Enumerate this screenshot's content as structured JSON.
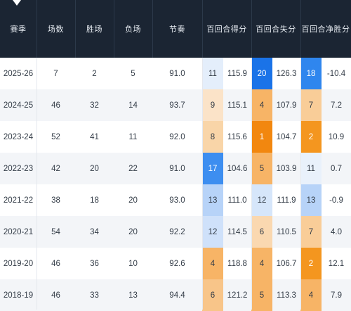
{
  "headers": {
    "season": "赛季",
    "games": "场数",
    "wins": "胜场",
    "losses": "负场",
    "pace": "节奏",
    "offrtg": "百回合得分",
    "defrtg": "百回合失分",
    "netrtg": "百回合净胜分"
  },
  "colors": {
    "header_bg": "#1b2533",
    "rank_scale": [
      "#1a73e8",
      "#3d8ef0",
      "#6aaaf4",
      "#9cc7f8",
      "#c6ddfa",
      "#e4eefb",
      "#fbe3c8",
      "#f9cd98",
      "#f7b466",
      "#f59c3a",
      "#f2870f"
    ]
  },
  "rows": [
    {
      "season": "2025-26",
      "games": "7",
      "wins": "2",
      "losses": "5",
      "pace": "91.0",
      "off_rank": "11",
      "off_val": "115.9",
      "def_rank": "20",
      "def_val": "126.3",
      "net_rank": "18",
      "net_val": "-10.4",
      "off_color": "#e4eefb",
      "def_color": "#1a73e8",
      "net_color": "#2f86ee"
    },
    {
      "season": "2024-25",
      "games": "46",
      "wins": "32",
      "losses": "14",
      "pace": "93.7",
      "off_rank": "9",
      "off_val": "115.1",
      "def_rank": "4",
      "def_val": "107.9",
      "net_rank": "7",
      "net_val": "7.2",
      "off_color": "#fbe3c8",
      "def_color": "#f7b466",
      "net_color": "#f9cd98"
    },
    {
      "season": "2023-24",
      "games": "52",
      "wins": "41",
      "losses": "11",
      "pace": "92.0",
      "off_rank": "8",
      "off_val": "115.6",
      "def_rank": "1",
      "def_val": "104.7",
      "net_rank": "2",
      "net_val": "10.9",
      "off_color": "#f9d5a8",
      "def_color": "#f2870f",
      "net_color": "#f4961f"
    },
    {
      "season": "2022-23",
      "games": "42",
      "wins": "20",
      "losses": "22",
      "pace": "91.0",
      "off_rank": "17",
      "off_val": "104.6",
      "def_rank": "5",
      "def_val": "103.9",
      "net_rank": "11",
      "net_val": "0.7",
      "off_color": "#3d8ef0",
      "def_color": "#f7b466",
      "net_color": "#e9f1fb"
    },
    {
      "season": "2021-22",
      "games": "38",
      "wins": "18",
      "losses": "20",
      "pace": "93.0",
      "off_rank": "13",
      "off_val": "111.0",
      "def_rank": "12",
      "def_val": "111.9",
      "net_rank": "13",
      "net_val": "-0.9",
      "off_color": "#b7d3f8",
      "def_color": "#d6e6fa",
      "net_color": "#b7d3f8"
    },
    {
      "season": "2020-21",
      "games": "54",
      "wins": "34",
      "losses": "20",
      "pace": "92.2",
      "off_rank": "12",
      "off_val": "114.5",
      "def_rank": "6",
      "def_val": "110.5",
      "net_rank": "7",
      "net_val": "4.0",
      "off_color": "#cfe1fa",
      "def_color": "#fad8b0",
      "net_color": "#f9cd98"
    },
    {
      "season": "2019-20",
      "games": "46",
      "wins": "36",
      "losses": "10",
      "pace": "92.6",
      "off_rank": "4",
      "off_val": "118.8",
      "def_rank": "4",
      "def_val": "106.7",
      "net_rank": "2",
      "net_val": "12.1",
      "off_color": "#f7b466",
      "def_color": "#f7b466",
      "net_color": "#f4961f"
    },
    {
      "season": "2018-19",
      "games": "46",
      "wins": "33",
      "losses": "13",
      "pace": "94.4",
      "off_rank": "6",
      "off_val": "121.2",
      "def_rank": "5",
      "def_val": "113.3",
      "net_rank": "4",
      "net_val": "7.9",
      "off_color": "#f8c589",
      "def_color": "#f7b466",
      "net_color": "#f7b466"
    }
  ]
}
